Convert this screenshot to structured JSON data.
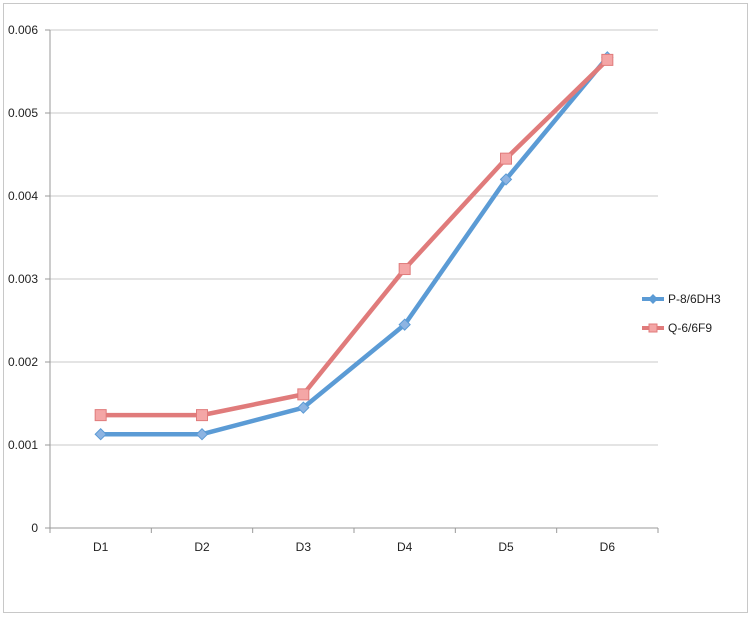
{
  "chart_data": {
    "type": "line",
    "categories": [
      "D1",
      "D2",
      "D3",
      "D4",
      "D5",
      "D6"
    ],
    "y_ticks": [
      "0",
      "0.001",
      "0.002",
      "0.003",
      "0.004",
      "0.005",
      "0.006"
    ],
    "ylim": [
      0,
      0.006
    ],
    "grid": true,
    "legend_position": "right",
    "series": [
      {
        "name": "P-8/6DH3",
        "color": "#5b9bd5",
        "marker_color": "#8db4e2",
        "marker": "diamond",
        "values": [
          0.00113,
          0.00113,
          0.00145,
          0.00245,
          0.0042,
          0.00567
        ]
      },
      {
        "name": "Q-6/6F9",
        "color": "#e07b7b",
        "marker_color": "#f4a6a6",
        "marker": "square",
        "values": [
          0.00136,
          0.00136,
          0.00161,
          0.00312,
          0.00445,
          0.00564
        ]
      }
    ]
  }
}
